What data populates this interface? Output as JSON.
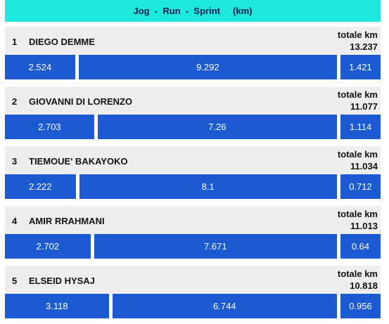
{
  "header": {
    "title": "Jog  -  Run  -  Sprint     (km)"
  },
  "total_label": "totale km",
  "colors": {
    "header": "#1ee8dc",
    "bar": "#1b5ad1",
    "row": "#eeeeef"
  },
  "chart_data": {
    "type": "bar",
    "orientation": "horizontal-stacked",
    "title": "Jog  -  Run  -  Sprint     (km)",
    "series_order": [
      "Jog",
      "Run",
      "Sprint"
    ],
    "players": [
      {
        "rank": "1",
        "name": "DIEGO DEMME",
        "total": "13.237",
        "segments": [
          {
            "label": "2.524",
            "value": 2.524
          },
          {
            "label": "9.292",
            "value": 9.292
          },
          {
            "label": "1.421",
            "value": 1.421
          }
        ]
      },
      {
        "rank": "2",
        "name": "GIOVANNI DI LORENZO",
        "total": "11.077",
        "segments": [
          {
            "label": "2.703",
            "value": 2.703
          },
          {
            "label": "7.26",
            "value": 7.26
          },
          {
            "label": "1.114",
            "value": 1.114
          }
        ]
      },
      {
        "rank": "3",
        "name": "TIEMOUE' BAKAYOKO",
        "total": "11.034",
        "segments": [
          {
            "label": "2.222",
            "value": 2.222
          },
          {
            "label": "8.1",
            "value": 8.1
          },
          {
            "label": "0.712",
            "value": 0.712
          }
        ]
      },
      {
        "rank": "4",
        "name": "AMIR RRAHMANI",
        "total": "11.013",
        "segments": [
          {
            "label": "2.702",
            "value": 2.702
          },
          {
            "label": "7.671",
            "value": 7.671
          },
          {
            "label": "0.64",
            "value": 0.64
          }
        ]
      },
      {
        "rank": "5",
        "name": "ELSEID HYSAJ",
        "total": "10.818",
        "segments": [
          {
            "label": "3.118",
            "value": 3.118
          },
          {
            "label": "6.744",
            "value": 6.744
          },
          {
            "label": "0.956",
            "value": 0.956
          }
        ]
      }
    ]
  }
}
